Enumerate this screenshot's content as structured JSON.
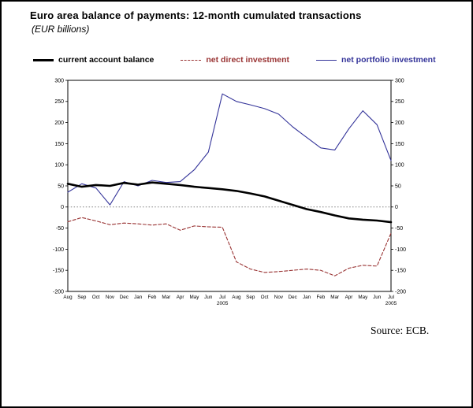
{
  "page": {
    "title": "Euro area balance of payments: 12-month cumulated transactions",
    "subtitle": "(EUR billions)",
    "source": "Source: ECB."
  },
  "legend": [
    {
      "label": "current account balance",
      "color": "#000000",
      "style": "solid-thick"
    },
    {
      "label": "net direct investment",
      "color": "#993333",
      "style": "dashed"
    },
    {
      "label": "net portfolio investment",
      "color": "#333399",
      "style": "solid-thin"
    }
  ],
  "chart_data": {
    "type": "line",
    "title": "Euro area balance of payments: 12-month cumulated transactions",
    "ylabel": "EUR billions",
    "ylim": [
      -200,
      300
    ],
    "ytick_step": 50,
    "grid": false,
    "legend_position": "top",
    "zero_line": {
      "value": 0,
      "style": "dotted",
      "color": "#808080"
    },
    "x_labels": [
      "Aug",
      "Sep",
      "Oct",
      "Nov",
      "Dec",
      "Jan",
      "Feb",
      "Mar",
      "Apr",
      "May",
      "Jun",
      "Jul",
      "Aug",
      "Sep",
      "Oct",
      "Nov",
      "Dec",
      "Jan",
      "Feb",
      "Mar",
      "Apr",
      "May",
      "Jun",
      "Jul"
    ],
    "year_labels": {
      "11": "2005",
      "23": "2005"
    },
    "series": [
      {
        "name": "current account balance",
        "color": "#000000",
        "width": 2.6,
        "dash": null,
        "values": [
          55,
          48,
          52,
          50,
          57,
          53,
          58,
          55,
          52,
          48,
          45,
          42,
          38,
          32,
          25,
          15,
          5,
          -5,
          -12,
          -20,
          -27,
          -30,
          -32,
          -36
        ]
      },
      {
        "name": "net direct investment",
        "color": "#993333",
        "width": 1.1,
        "dash": "4 2.5",
        "values": [
          -35,
          -25,
          -33,
          -42,
          -38,
          -40,
          -43,
          -40,
          -55,
          -45,
          -47,
          -48,
          -130,
          -147,
          -155,
          -153,
          -150,
          -147,
          -150,
          -163,
          -145,
          -138,
          -140,
          -62
        ]
      },
      {
        "name": "net portfolio investment",
        "color": "#333399",
        "width": 1.1,
        "dash": null,
        "values": [
          35,
          55,
          45,
          5,
          60,
          50,
          63,
          58,
          60,
          88,
          130,
          268,
          250,
          242,
          233,
          220,
          190,
          165,
          140,
          135,
          185,
          228,
          195,
          110
        ]
      }
    ]
  }
}
